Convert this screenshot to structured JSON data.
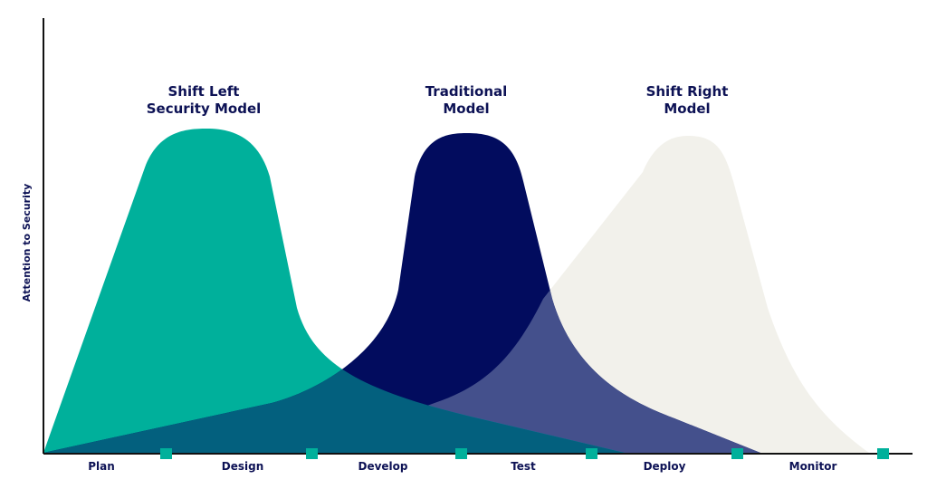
{
  "y_axis_label": "Attention to Security",
  "curves": [
    {
      "id": "shift-left",
      "title_lines": [
        "Shift Left",
        "Security Model"
      ],
      "color": "#00b09b"
    },
    {
      "id": "traditional",
      "title_lines": [
        "Traditional",
        "Model"
      ],
      "color": "#020c5e"
    },
    {
      "id": "shift-right",
      "title_lines": [
        "Shift Right",
        "Model"
      ],
      "color": "#f2f1eb"
    }
  ],
  "phases": [
    "Plan",
    "Design",
    "Develop",
    "Test",
    "Deploy",
    "Monitor"
  ],
  "colors": {
    "axis": "#111111",
    "text": "#0d1255",
    "marker": "#00b09b",
    "overlap_teal_navy": "#03607e",
    "overlap_navy_cream": "#44508c",
    "overlap_teal_cream": "#00a6c0"
  }
}
